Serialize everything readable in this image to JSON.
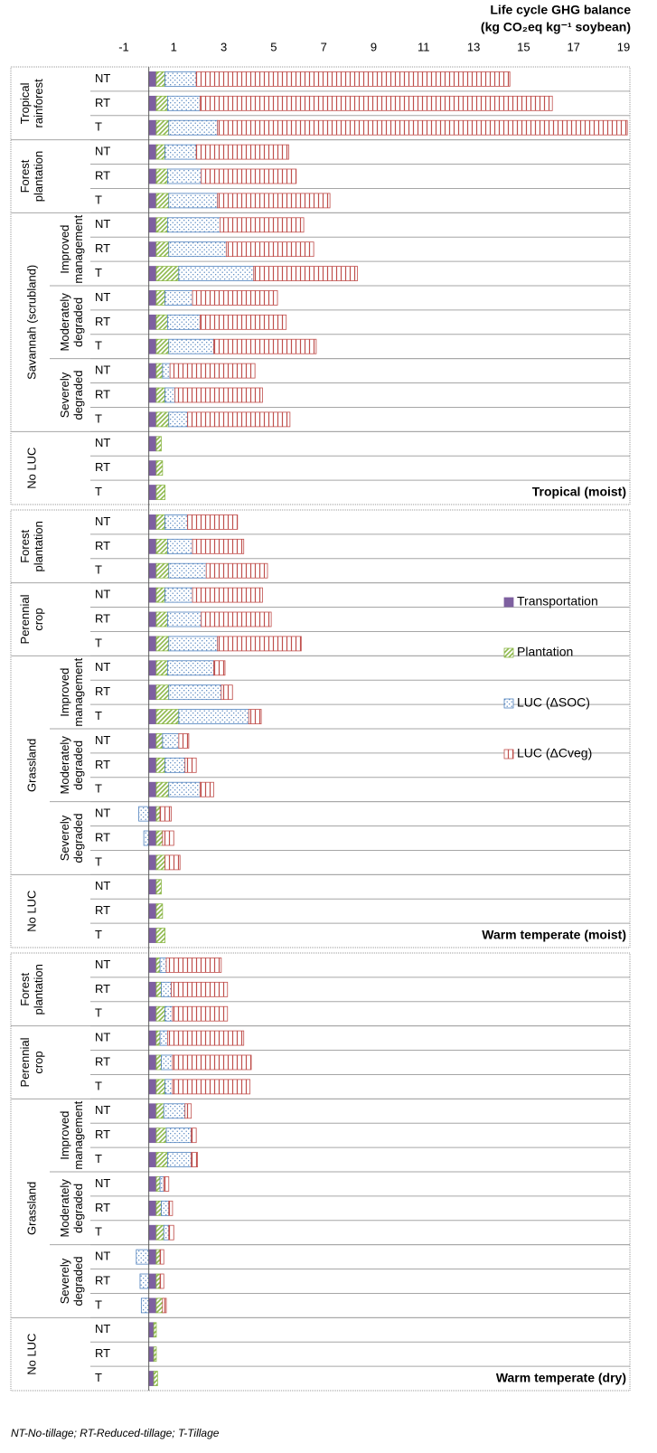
{
  "chart_data": {
    "type": "bar",
    "orientation": "horizontal",
    "x_label": [
      "Life cycle GHG balance",
      "(kg CO₂eq kg⁻¹ soybean)"
    ],
    "xlim": [
      -1,
      19
    ],
    "xticks": [
      -1,
      1,
      3,
      5,
      7,
      9,
      11,
      13,
      15,
      17,
      19
    ],
    "series": [
      {
        "name": "Transportation",
        "color": "#7e60a0",
        "pattern": "solid"
      },
      {
        "name": "Plantation",
        "color": "#8db84a",
        "pattern": "diagonal"
      },
      {
        "name": "LUC (ΔSOC)",
        "color": "#4f81bd",
        "pattern": "dots"
      },
      {
        "name": "LUC  (ΔCveg)",
        "color": "#c0504d",
        "pattern": "vertical"
      }
    ],
    "panels": [
      {
        "label": "Tropical (moist)",
        "groups": [
          {
            "label": [
              "Tropical",
              "rainforest"
            ],
            "categories": [
              "NT",
              "RT",
              "T"
            ]
          },
          {
            "label": [
              "Forest",
              "plantation"
            ],
            "categories": [
              "NT",
              "RT",
              "T"
            ]
          },
          {
            "label": [
              "Savannah (scrubland)"
            ],
            "subgroups": [
              {
                "label": [
                  "Improved",
                  "management"
                ],
                "categories": [
                  "NT",
                  "RT",
                  "T"
                ]
              },
              {
                "label": [
                  "Moderately",
                  "degraded"
                ],
                "categories": [
                  "NT",
                  "RT",
                  "T"
                ]
              },
              {
                "label": [
                  "Severely",
                  "degraded"
                ],
                "categories": [
                  "NT",
                  "RT",
                  "T"
                ]
              }
            ]
          },
          {
            "label": [
              "No LUC"
            ],
            "categories": [
              "NT",
              "RT",
              "T"
            ]
          }
        ],
        "series": [
          {
            "values": [
              0.3,
              0.3,
              0.3,
              0.3,
              0.3,
              0.3,
              0.3,
              0.3,
              0.3,
              0.3,
              0.3,
              0.3,
              0.3,
              0.3,
              0.3,
              0.3,
              0.3,
              0.3
            ]
          },
          {
            "values": [
              0.35,
              0.45,
              0.5,
              0.35,
              0.45,
              0.5,
              0.45,
              0.5,
              0.9,
              0.35,
              0.45,
              0.5,
              0.25,
              0.35,
              0.5,
              0.2,
              0.25,
              0.35
            ]
          },
          {
            "values": [
              1.25,
              1.3,
              1.95,
              1.25,
              1.35,
              1.95,
              2.1,
              2.3,
              3.0,
              1.1,
              1.3,
              1.8,
              0.3,
              0.4,
              0.75,
              0,
              0,
              0
            ]
          },
          {
            "values": [
              12.55,
              14.1,
              16.4,
              3.7,
              3.8,
              4.5,
              3.35,
              3.5,
              4.15,
              3.4,
              3.45,
              4.1,
              3.4,
              3.5,
              4.1,
              0,
              0,
              0
            ]
          }
        ]
      },
      {
        "label": "Warm temperate (moist)",
        "groups": [
          {
            "label": [
              "Forest",
              "plantation"
            ],
            "categories": [
              "NT",
              "RT",
              "T"
            ]
          },
          {
            "label": [
              "Perennial",
              "crop"
            ],
            "categories": [
              "NT",
              "RT",
              "T"
            ]
          },
          {
            "label": [
              "Grassland"
            ],
            "subgroups": [
              {
                "label": [
                  "Improved",
                  "management"
                ],
                "categories": [
                  "NT",
                  "RT",
                  "T"
                ]
              },
              {
                "label": [
                  "Moderately",
                  "degraded"
                ],
                "categories": [
                  "NT",
                  "RT",
                  "T"
                ]
              },
              {
                "label": [
                  "Severely",
                  "degraded"
                ],
                "categories": [
                  "NT",
                  "RT",
                  "T"
                ]
              }
            ]
          },
          {
            "label": [
              "No LUC"
            ],
            "categories": [
              "NT",
              "RT",
              "T"
            ]
          }
        ],
        "series": [
          {
            "values": [
              0.3,
              0.3,
              0.3,
              0.3,
              0.3,
              0.3,
              0.3,
              0.3,
              0.3,
              0.3,
              0.3,
              0.3,
              0.3,
              0.3,
              0.3,
              0.3,
              0.3,
              0.3
            ]
          },
          {
            "values": [
              0.35,
              0.45,
              0.5,
              0.35,
              0.45,
              0.5,
              0.45,
              0.5,
              0.9,
              0.25,
              0.35,
              0.5,
              0.15,
              0.25,
              0.35,
              0.2,
              0.25,
              0.35
            ]
          },
          {
            "values": [
              0.9,
              1.0,
              1.5,
              1.1,
              1.35,
              1.95,
              1.85,
              2.1,
              2.8,
              0.65,
              0.8,
              1.25,
              -0.4,
              -0.2,
              0,
              0,
              0,
              0
            ]
          },
          {
            "values": [
              2.0,
              2.05,
              2.45,
              2.8,
              2.8,
              3.35,
              0.45,
              0.45,
              0.5,
              0.4,
              0.45,
              0.55,
              0.45,
              0.45,
              0.6,
              0,
              0,
              0
            ]
          }
        ]
      },
      {
        "label": "Warm temperate (dry)",
        "groups": [
          {
            "label": [
              "Forest",
              "plantation"
            ],
            "categories": [
              "NT",
              "RT",
              "T"
            ]
          },
          {
            "label": [
              "Perennial",
              "crop"
            ],
            "categories": [
              "NT",
              "RT",
              "T"
            ]
          },
          {
            "label": [
              "Grassland"
            ],
            "subgroups": [
              {
                "label": [
                  "Improved",
                  "management"
                ],
                "categories": [
                  "NT",
                  "RT",
                  "T"
                ]
              },
              {
                "label": [
                  "Moderately",
                  "degraded"
                ],
                "categories": [
                  "NT",
                  "RT",
                  "T"
                ]
              },
              {
                "label": [
                  "Severely",
                  "degraded"
                ],
                "categories": [
                  "NT",
                  "RT",
                  "T"
                ]
              }
            ]
          },
          {
            "label": [
              "No LUC"
            ],
            "categories": [
              "NT",
              "RT",
              "T"
            ]
          }
        ],
        "series": [
          {
            "values": [
              0.3,
              0.3,
              0.3,
              0.3,
              0.3,
              0.3,
              0.3,
              0.3,
              0.3,
              0.3,
              0.3,
              0.3,
              0.3,
              0.3,
              0.3,
              0.2,
              0.2,
              0.2
            ]
          },
          {
            "values": [
              0.15,
              0.2,
              0.35,
              0.15,
              0.2,
              0.35,
              0.3,
              0.4,
              0.45,
              0.15,
              0.2,
              0.3,
              0.15,
              0.15,
              0.25,
              0.1,
              0.1,
              0.15
            ]
          },
          {
            "values": [
              0.25,
              0.4,
              0.3,
              0.3,
              0.45,
              0.3,
              0.85,
              1.0,
              0.95,
              0.15,
              0.3,
              0.2,
              -0.5,
              -0.35,
              -0.3,
              0,
              0,
              0
            ]
          },
          {
            "values": [
              2.2,
              2.25,
              2.2,
              3.05,
              3.15,
              3.1,
              0.25,
              0.2,
              0.25,
              0.2,
              0.15,
              0.2,
              0.15,
              0.15,
              0.15,
              0,
              0,
              0
            ]
          }
        ]
      }
    ],
    "footnote": "NT-No-tillage; RT-Reduced-tillage; T-Tillage"
  }
}
